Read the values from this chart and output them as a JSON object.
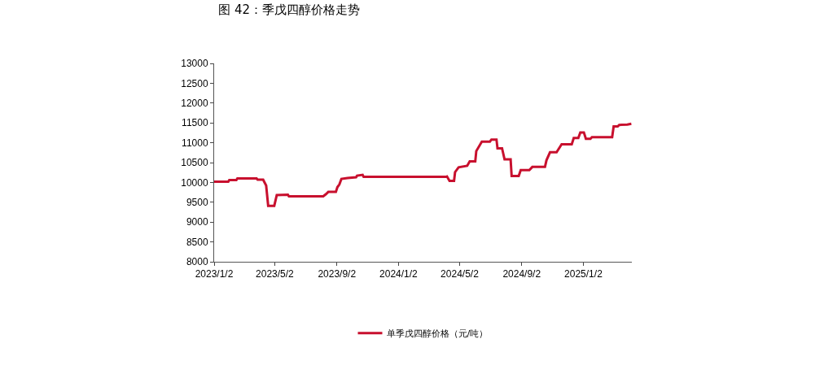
{
  "chart_data": {
    "type": "line",
    "title": "图 42：季戊四醇价格走势",
    "x": [
      "2023-01-02",
      "2023-01-30",
      "2023-02-01",
      "2023-02-15",
      "2023-02-17",
      "2023-03-27",
      "2023-03-29",
      "2023-04-09",
      "2023-04-15",
      "2023-04-19",
      "2023-05-01",
      "2023-05-06",
      "2023-05-28",
      "2023-05-30",
      "2023-08-06",
      "2023-08-11",
      "2023-08-16",
      "2023-08-31",
      "2023-09-03",
      "2023-09-07",
      "2023-09-11",
      "2023-09-23",
      "2023-10-10",
      "2023-10-12",
      "2023-10-23",
      "2023-10-25",
      "2024-04-05",
      "2024-04-07",
      "2024-04-12",
      "2024-04-21",
      "2024-04-23",
      "2024-04-30",
      "2024-05-17",
      "2024-05-22",
      "2024-06-02",
      "2024-06-04",
      "2024-06-15",
      "2024-07-01",
      "2024-07-04",
      "2024-07-14",
      "2024-07-16",
      "2024-07-25",
      "2024-07-30",
      "2024-08-11",
      "2024-08-13",
      "2024-08-27",
      "2024-08-31",
      "2024-09-17",
      "2024-09-23",
      "2024-10-18",
      "2024-10-21",
      "2024-10-28",
      "2024-11-10",
      "2024-11-20",
      "2024-12-10",
      "2024-12-14",
      "2024-12-23",
      "2024-12-27",
      "2025-01-03",
      "2025-01-07",
      "2025-01-16",
      "2025-01-19",
      "2025-02-28",
      "2025-03-03",
      "2025-03-11",
      "2025-03-14",
      "2025-03-30",
      "2025-04-07"
    ],
    "series": [
      {
        "name": "单季戊四醇价格（元/吨）",
        "color": "#c8102e",
        "values": [
          10020,
          10020,
          10060,
          10060,
          10100,
          10100,
          10070,
          10070,
          9920,
          9410,
          9410,
          9680,
          9690,
          9650,
          9650,
          9700,
          9760,
          9760,
          9880,
          9950,
          10090,
          10110,
          10130,
          10170,
          10190,
          10140,
          10140,
          10150,
          10040,
          10040,
          10260,
          10380,
          10420,
          10530,
          10530,
          10790,
          11030,
          11030,
          11080,
          11080,
          10860,
          10860,
          10580,
          10580,
          10160,
          10160,
          10310,
          10310,
          10390,
          10390,
          10560,
          10760,
          10760,
          10960,
          10960,
          11120,
          11120,
          11260,
          11260,
          11100,
          11100,
          11140,
          11140,
          11410,
          11410,
          11450,
          11460,
          11480
        ]
      }
    ],
    "xlim": [
      "2023-01-02",
      "2025-04-08"
    ],
    "xticks": [
      {
        "value": "2023-01-02",
        "label": "2023/1/2"
      },
      {
        "value": "2023-05-02",
        "label": "2023/5/2"
      },
      {
        "value": "2023-09-02",
        "label": "2023/9/2"
      },
      {
        "value": "2024-01-02",
        "label": "2024/1/2"
      },
      {
        "value": "2024-05-02",
        "label": "2024/5/2"
      },
      {
        "value": "2024-09-02",
        "label": "2024/9/2"
      },
      {
        "value": "2025-01-02",
        "label": "2025/1/2"
      }
    ],
    "ylim": [
      8000,
      13000
    ],
    "yticks": [
      8000,
      8500,
      9000,
      9500,
      10000,
      10500,
      11000,
      11500,
      12000,
      12500,
      13000
    ],
    "legend": "bottom",
    "marker": "none",
    "line_style": "solid"
  }
}
